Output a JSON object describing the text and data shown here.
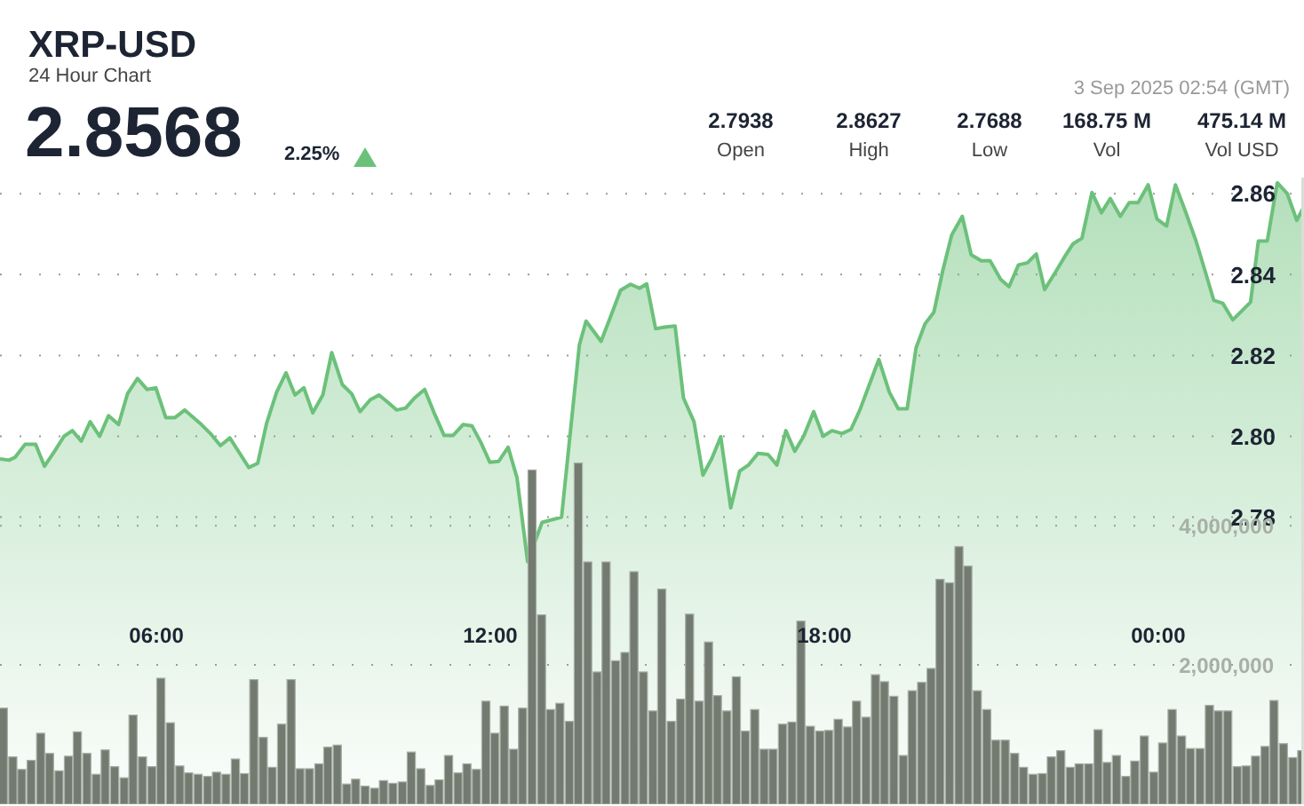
{
  "chart_data": {
    "type": "area",
    "title": "XRP-USD",
    "subtitle": "24 Hour Chart",
    "annotations": [
      "2.8568",
      "2.25%",
      "2.7938",
      "Open",
      "2.8627",
      "High",
      "2.7688",
      "Low",
      "168.75 M",
      "Vol",
      "475.14 M",
      "Vol USD",
      "3 Sep 2025 02:54 (GMT)"
    ],
    "xlim": [
      3.19,
      26.62
    ],
    "xticks": [
      {
        "value": 6,
        "label": "06:00"
      },
      {
        "value": 12,
        "label": "12:00"
      },
      {
        "value": 18,
        "label": "18:00"
      },
      {
        "value": 24,
        "label": "00:00"
      }
    ],
    "ylim": [
      2.709,
      2.864
    ],
    "yticks": [
      2.78,
      {
        "value": 2.8,
        "label": "2.80"
      },
      2.82,
      2.84,
      2.86
    ],
    "y2lim": [
      0,
      9000000
    ],
    "y2ticks": [
      {
        "value": 2000000,
        "label": "2,000,000"
      },
      {
        "value": 4000000,
        "label": "4,000,000"
      }
    ],
    "grid": true,
    "series": [
      {
        "color": "#6cc17a",
        "x": [
          3.19,
          3.35,
          3.46,
          3.64,
          3.83,
          3.99,
          4.17,
          4.34,
          4.49,
          4.65,
          4.81,
          4.98,
          5.14,
          5.32,
          5.48,
          5.66,
          5.83,
          5.99,
          6.17,
          6.33,
          6.51,
          6.81,
          6.97,
          7.15,
          7.32,
          7.66,
          7.82,
          7.98,
          8.16,
          8.33,
          8.49,
          8.65,
          8.81,
          8.99,
          9.15,
          9.34,
          9.51,
          9.66,
          9.84,
          10.0,
          10.16,
          10.32,
          10.48,
          10.64,
          10.82,
          10.99,
          11.17,
          11.33,
          11.51,
          11.67,
          11.83,
          11.99,
          12.15,
          12.32,
          12.48,
          12.67,
          12.93,
          13.28,
          13.6,
          13.72,
          13.99,
          14.15,
          14.34,
          14.52,
          14.68,
          14.81,
          14.97,
          15.13,
          15.32,
          15.47,
          15.66,
          15.82,
          15.98,
          16.14,
          16.32,
          16.48,
          16.64,
          16.81,
          16.99,
          17.15,
          17.31,
          17.47,
          17.63,
          17.81,
          17.98,
          18.14,
          18.32,
          18.48,
          18.64,
          18.8,
          18.98,
          19.17,
          19.33,
          19.49,
          19.65,
          19.81,
          19.97,
          20.13,
          20.29,
          20.48,
          20.64,
          20.82,
          20.98,
          21.17,
          21.32,
          21.49,
          21.65,
          21.81,
          21.96,
          22.15,
          22.31,
          22.47,
          22.63,
          22.81,
          22.98,
          23.14,
          23.32,
          23.48,
          23.64,
          23.82,
          23.98,
          24.15,
          24.31,
          24.49,
          24.68,
          24.84,
          25.0,
          25.16,
          25.34,
          25.5,
          25.66,
          25.8,
          25.96,
          26.14,
          26.32,
          26.49,
          26.62
        ],
        "values": [
          2.7944,
          2.7941,
          2.7948,
          2.798,
          2.798,
          2.7926,
          2.7963,
          2.8,
          2.8014,
          2.7988,
          2.8036,
          2.8,
          2.8051,
          2.8029,
          2.8105,
          2.8143,
          2.8116,
          2.812,
          2.8046,
          2.8046,
          2.8065,
          2.8029,
          2.8007,
          2.7977,
          2.7996,
          2.7923,
          2.7933,
          2.8032,
          2.8109,
          2.8157,
          2.8102,
          2.812,
          2.8058,
          2.8102,
          2.8207,
          2.8128,
          2.8105,
          2.8061,
          2.809,
          2.8102,
          2.8084,
          2.8065,
          2.807,
          2.8095,
          2.8116,
          2.8058,
          2.8002,
          2.8002,
          2.8029,
          2.8026,
          2.7985,
          2.7936,
          2.7938,
          2.7973,
          2.7897,
          2.769,
          2.7787,
          2.78,
          2.8226,
          2.8285,
          2.8235,
          2.8292,
          2.8361,
          2.8376,
          2.8366,
          2.8377,
          2.8266,
          2.827,
          2.8273,
          2.8095,
          2.8036,
          2.7904,
          2.7945,
          2.7999,
          2.7823,
          2.7914,
          2.7929,
          2.7958,
          2.7955,
          2.7929,
          2.8014,
          2.7963,
          2.8,
          2.8061,
          2.8,
          2.8014,
          2.8007,
          2.8017,
          2.8065,
          2.8124,
          2.819,
          2.8109,
          2.8068,
          2.8068,
          2.8219,
          2.8278,
          2.8307,
          2.841,
          2.8498,
          2.8544,
          2.8449,
          2.8434,
          2.8434,
          2.8388,
          2.837,
          2.8424,
          2.8429,
          2.8451,
          2.8363,
          2.8405,
          2.8442,
          2.8476,
          2.849,
          2.8603,
          2.8553,
          2.8588,
          2.8544,
          2.8578,
          2.8578,
          2.8622,
          2.8537,
          2.852,
          2.8622,
          2.8556,
          2.8483,
          2.841,
          2.8336,
          2.8329,
          2.8288,
          2.831,
          2.8332,
          2.8483,
          2.8483,
          2.8627,
          2.86,
          2.8534,
          2.8568
        ]
      },
      {
        "type": "bar",
        "axis": "y2",
        "color": "#737b71",
        "x": [
          3.25,
          3.42,
          3.58,
          3.75,
          3.92,
          4.08,
          4.25,
          4.42,
          4.58,
          4.75,
          4.92,
          5.08,
          5.25,
          5.42,
          5.58,
          5.75,
          5.92,
          6.08,
          6.25,
          6.42,
          6.58,
          6.75,
          6.92,
          7.08,
          7.25,
          7.42,
          7.58,
          7.75,
          7.92,
          8.08,
          8.25,
          8.42,
          8.58,
          8.75,
          8.92,
          9.08,
          9.25,
          9.42,
          9.58,
          9.75,
          9.92,
          10.08,
          10.25,
          10.42,
          10.58,
          10.75,
          10.92,
          11.08,
          11.25,
          11.42,
          11.58,
          11.75,
          11.92,
          12.08,
          12.25,
          12.42,
          12.58,
          12.75,
          12.92,
          13.08,
          13.25,
          13.42,
          13.58,
          13.75,
          13.92,
          14.08,
          14.25,
          14.42,
          14.58,
          14.75,
          14.92,
          15.08,
          15.25,
          15.42,
          15.58,
          15.75,
          15.92,
          16.08,
          16.25,
          16.42,
          16.58,
          16.75,
          16.92,
          17.08,
          17.25,
          17.42,
          17.58,
          17.75,
          17.92,
          18.08,
          18.25,
          18.42,
          18.58,
          18.75,
          18.92,
          19.08,
          19.25,
          19.42,
          19.58,
          19.75,
          19.92,
          20.08,
          20.25,
          20.42,
          20.58,
          20.75,
          20.92,
          21.08,
          21.25,
          21.42,
          21.58,
          21.75,
          21.92,
          22.08,
          22.25,
          22.42,
          22.58,
          22.75,
          22.92,
          23.08,
          23.25,
          23.42,
          23.58,
          23.75,
          23.92,
          24.08,
          24.25,
          24.42,
          24.58,
          24.75,
          24.92,
          25.08,
          25.25,
          25.42,
          25.58,
          25.75,
          25.92,
          26.08,
          26.25,
          26.42,
          26.58
        ],
        "values": [
          1380000,
          680000,
          500000,
          630000,
          1020000,
          730000,
          480000,
          690000,
          1040000,
          730000,
          430000,
          780000,
          540000,
          380000,
          1280000,
          680000,
          540000,
          1810000,
          1170000,
          550000,
          450000,
          430000,
          400000,
          460000,
          430000,
          650000,
          440000,
          1790000,
          960000,
          530000,
          1150000,
          1790000,
          510000,
          510000,
          580000,
          820000,
          850000,
          290000,
          360000,
          260000,
          230000,
          340000,
          300000,
          320000,
          750000,
          510000,
          270000,
          350000,
          700000,
          450000,
          580000,
          500000,
          1480000,
          1020000,
          1410000,
          790000,
          1380000,
          4800000,
          2720000,
          1360000,
          1450000,
          1190000,
          4900000,
          3480000,
          1900000,
          3480000,
          2060000,
          2180000,
          3340000,
          1900000,
          1340000,
          3090000,
          1190000,
          1510000,
          2730000,
          1480000,
          2330000,
          1560000,
          1340000,
          1830000,
          1050000,
          1360000,
          790000,
          790000,
          1150000,
          1180000,
          2630000,
          1120000,
          1050000,
          1060000,
          1220000,
          1110000,
          1480000,
          1250000,
          1860000,
          1760000,
          1550000,
          700000,
          1630000,
          1750000,
          1950000,
          3230000,
          3180000,
          3700000,
          3420000,
          1630000,
          1360000,
          920000,
          920000,
          730000,
          530000,
          430000,
          440000,
          680000,
          770000,
          530000,
          580000,
          580000,
          1070000,
          600000,
          700000,
          400000,
          620000,
          980000,
          460000,
          880000,
          1360000,
          980000,
          800000,
          800000,
          1420000,
          1340000,
          1340000,
          540000,
          550000,
          690000,
          830000,
          1490000,
          870000,
          670000,
          770000
        ]
      }
    ]
  }
}
